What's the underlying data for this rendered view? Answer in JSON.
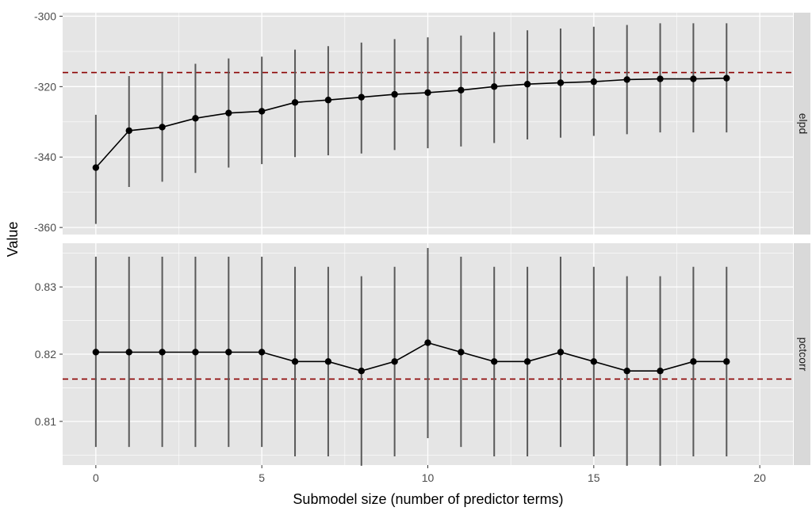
{
  "chart_data": {
    "type": "line",
    "xlabel": "Submodel size (number of predictor terms)",
    "ylabel": "Value",
    "xlim": [
      -1,
      21
    ],
    "x_ticks": [
      0,
      5,
      10,
      15,
      20
    ],
    "grid": true,
    "colors": {
      "panel_bg": "#e5e5e5",
      "strip_bg": "#d9d9d9",
      "grid": "#ffffff",
      "line": "#000000",
      "errorbar": "#595959",
      "reference": "#8b0000"
    },
    "panels": [
      {
        "strip": "elpd",
        "ylim": [
          -362,
          -299
        ],
        "y_ticks": [
          -300,
          -320,
          -340,
          -360
        ],
        "reference_line": -316,
        "x": [
          0,
          1,
          2,
          3,
          4,
          5,
          6,
          7,
          8,
          9,
          10,
          11,
          12,
          13,
          14,
          15,
          16,
          17,
          18,
          19
        ],
        "y": [
          -343.0,
          -332.5,
          -331.5,
          -329.0,
          -327.5,
          -327.0,
          -324.5,
          -323.8,
          -323.0,
          -322.2,
          -321.7,
          -321.0,
          -320.0,
          -319.3,
          -318.9,
          -318.6,
          -318.0,
          -317.8,
          -317.8,
          -317.6
        ],
        "lower": [
          -359,
          -348.5,
          -347,
          -344.5,
          -343,
          -342,
          -340,
          -339.5,
          -339,
          -338,
          -337.5,
          -337,
          -336,
          -335,
          -334.5,
          -334,
          -333.5,
          -333,
          -333,
          -333
        ],
        "upper": [
          -328,
          -317,
          -316,
          -313.5,
          -312,
          -311.5,
          -309.5,
          -308.5,
          -307.5,
          -306.5,
          -306,
          -305.5,
          -304.5,
          -304,
          -303.5,
          -303,
          -302.5,
          -302,
          -302,
          -302
        ]
      },
      {
        "strip": "pctcorr",
        "ylim": [
          0.8035,
          0.8365
        ],
        "y_ticks": [
          0.83,
          0.82,
          0.81
        ],
        "reference_line": 0.8163,
        "x": [
          0,
          1,
          2,
          3,
          4,
          5,
          6,
          7,
          8,
          9,
          10,
          11,
          12,
          13,
          14,
          15,
          16,
          17,
          18,
          19
        ],
        "y": [
          0.8203,
          0.8203,
          0.8203,
          0.8203,
          0.8203,
          0.8203,
          0.8189,
          0.8189,
          0.8175,
          0.8189,
          0.8217,
          0.8203,
          0.8189,
          0.8189,
          0.8203,
          0.8189,
          0.8175,
          0.8175,
          0.8189,
          0.8189
        ],
        "lower": [
          0.8062,
          0.8062,
          0.8062,
          0.8062,
          0.8062,
          0.8062,
          0.8048,
          0.8048,
          0.8034,
          0.8048,
          0.8075,
          0.8062,
          0.8048,
          0.8048,
          0.8062,
          0.8048,
          0.8034,
          0.8034,
          0.8048,
          0.8048
        ],
        "upper": [
          0.8345,
          0.8345,
          0.8345,
          0.8345,
          0.8345,
          0.8345,
          0.833,
          0.833,
          0.8316,
          0.833,
          0.8358,
          0.8345,
          0.833,
          0.833,
          0.8345,
          0.833,
          0.8316,
          0.8316,
          0.833,
          0.833
        ]
      }
    ]
  }
}
